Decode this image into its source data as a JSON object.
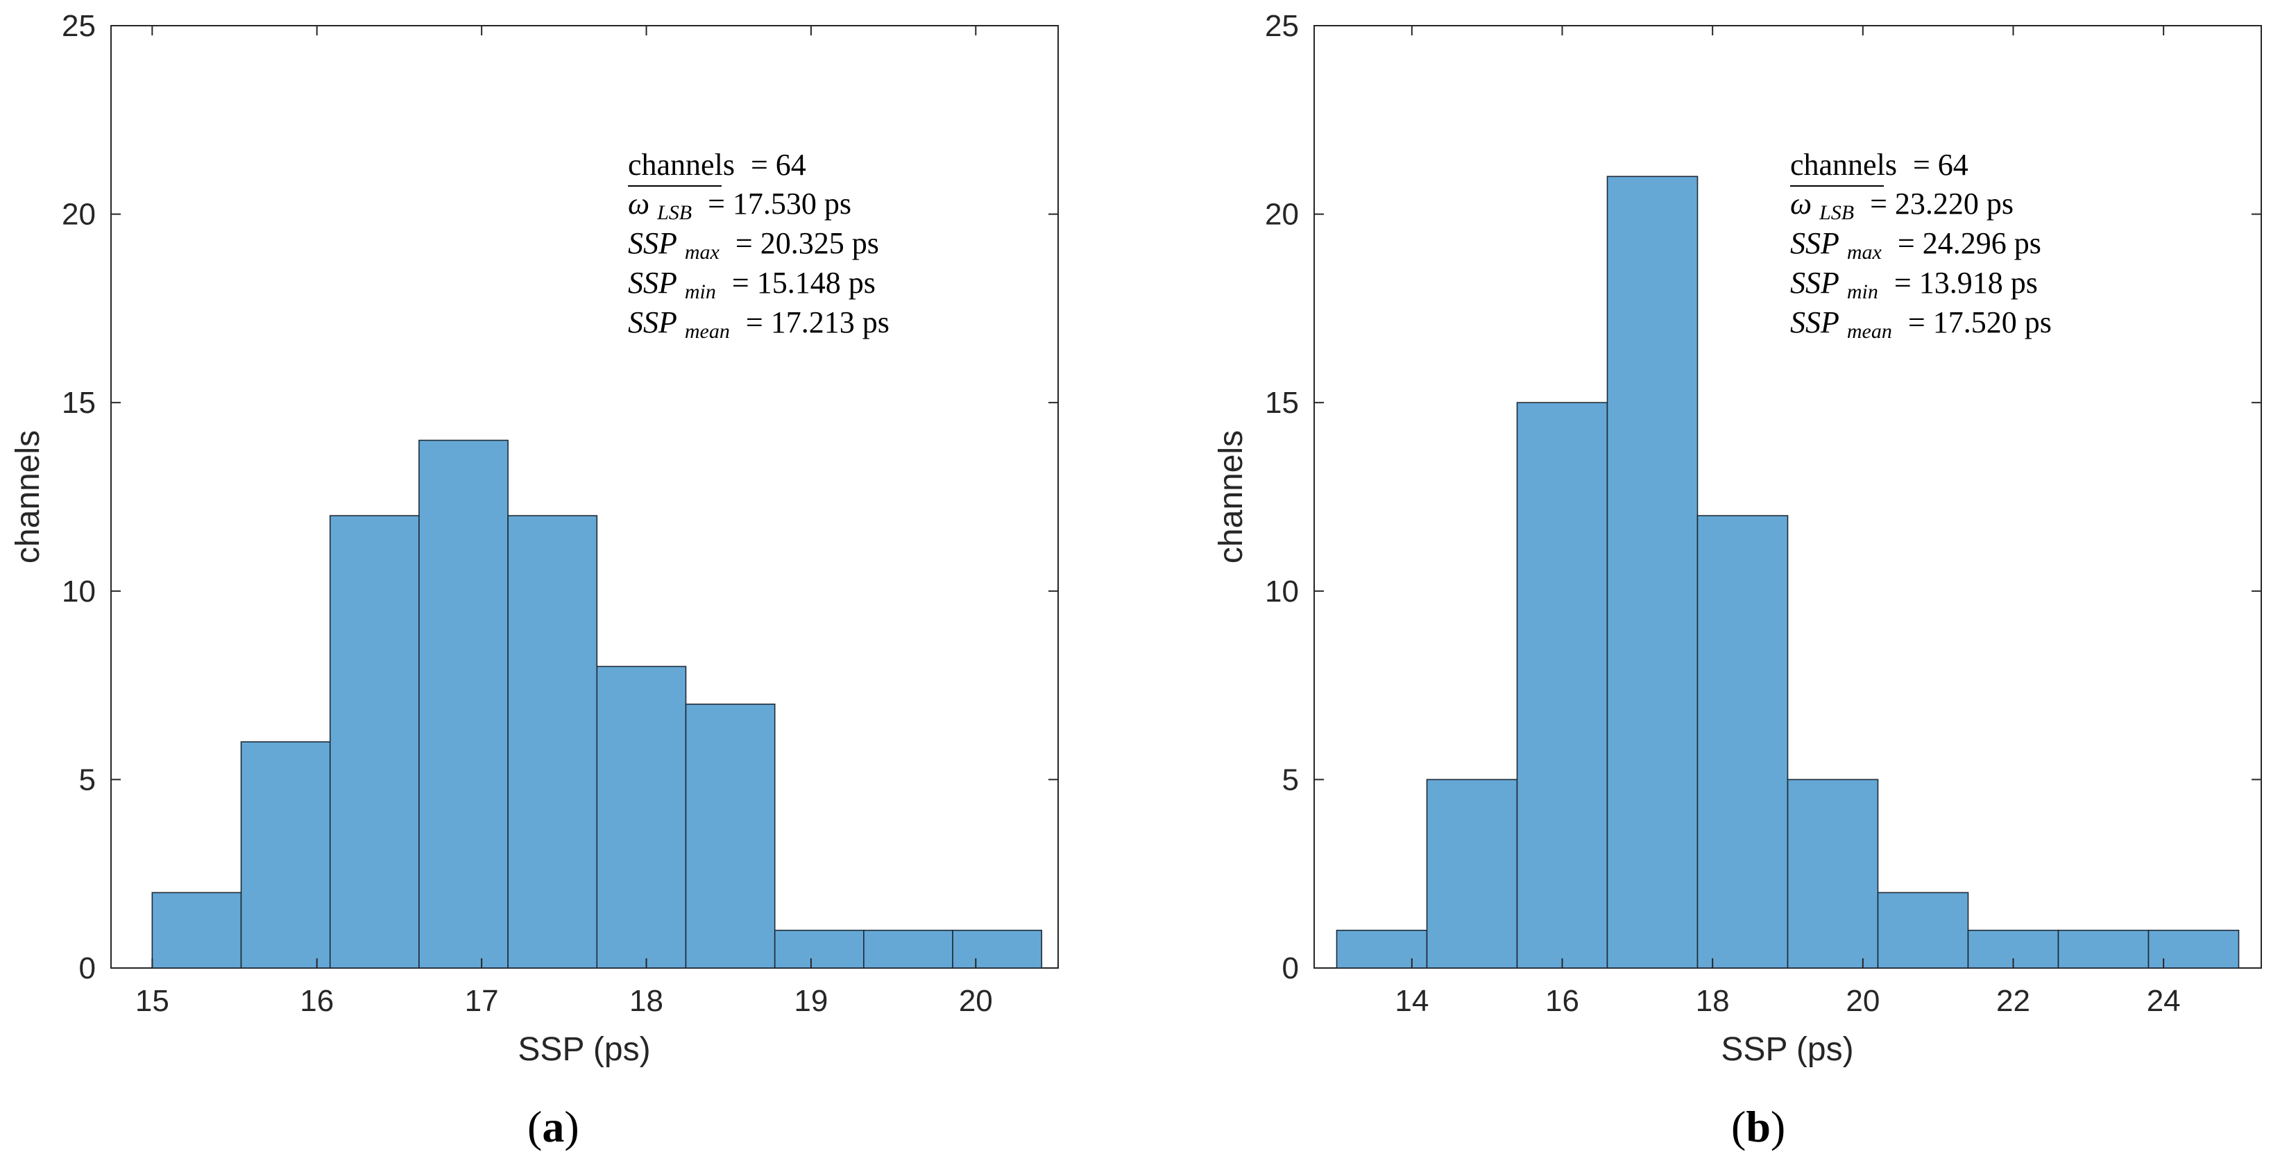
{
  "chart_data": [
    {
      "id": "a",
      "type": "bar",
      "panel_label": "a",
      "xlabel": "SSP (ps)",
      "ylabel": "channels",
      "xlim": [
        14.75,
        20.5
      ],
      "ylim": [
        0,
        25
      ],
      "xticks": [
        15,
        16,
        17,
        18,
        19,
        20
      ],
      "yticks": [
        0,
        5,
        10,
        15,
        20,
        25
      ],
      "bin_edges": [
        15.0,
        15.54,
        16.08,
        16.62,
        17.16,
        17.7,
        18.24,
        18.78,
        19.32,
        19.86,
        20.4
      ],
      "values": [
        2,
        6,
        12,
        14,
        12,
        8,
        7,
        1,
        1,
        1
      ],
      "bar_color": "#65a8d6",
      "annotations": {
        "channels": {
          "label": "channels",
          "value": "= 64"
        },
        "w_lsb": {
          "sym": "ω",
          "sub": "LSB",
          "value": "= 17.530 ps"
        },
        "ssp_max": {
          "sym": "SSP",
          "sub": "max",
          "value": "= 20.325 ps"
        },
        "ssp_min": {
          "sym": "SSP",
          "sub": "min",
          "value": "= 15.148 ps"
        },
        "ssp_mean": {
          "sym": "SSP",
          "sub": "mean",
          "value": "= 17.213 ps"
        }
      }
    },
    {
      "id": "b",
      "type": "bar",
      "panel_label": "b",
      "xlabel": "SSP (ps)",
      "ylabel": "channels",
      "xlim": [
        12.7,
        25.3
      ],
      "ylim": [
        0,
        25
      ],
      "xticks": [
        14,
        16,
        18,
        20,
        22,
        24
      ],
      "yticks": [
        0,
        5,
        10,
        15,
        20,
        25
      ],
      "bin_edges": [
        13.0,
        14.2,
        15.4,
        16.6,
        17.8,
        19.0,
        20.2,
        21.4,
        22.6,
        23.8,
        25.0
      ],
      "values": [
        1,
        5,
        15,
        21,
        12,
        5,
        2,
        1,
        1,
        1
      ],
      "bar_color": "#65a8d6",
      "annotations": {
        "channels": {
          "label": "channels",
          "value": "= 64"
        },
        "w_lsb": {
          "sym": "ω",
          "sub": "LSB",
          "value": "= 23.220 ps"
        },
        "ssp_max": {
          "sym": "SSP",
          "sub": "max",
          "value": "= 24.296 ps"
        },
        "ssp_min": {
          "sym": "SSP",
          "sub": "min",
          "value": "= 13.918 ps"
        },
        "ssp_mean": {
          "sym": "SSP",
          "sub": "mean",
          "value": "= 17.520 ps"
        }
      }
    }
  ]
}
